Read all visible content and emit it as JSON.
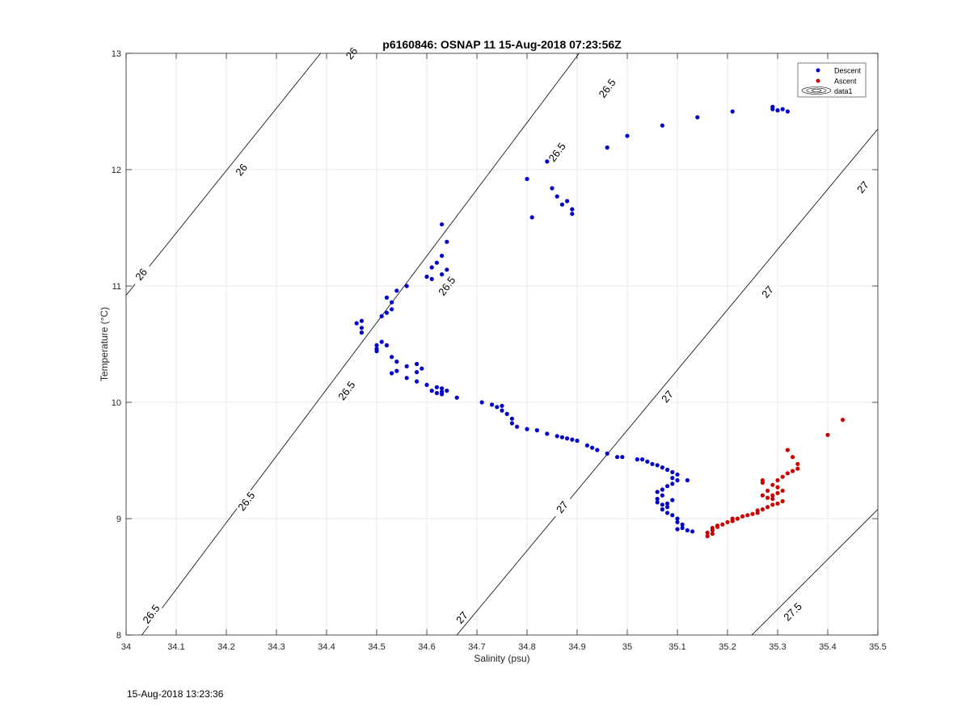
{
  "footer_timestamp": "15-Aug-2018 13:23:36",
  "colors": {
    "descent": "#0000cc",
    "ascent": "#cc0000",
    "grid": "#e3e3e3",
    "axis": "#262626",
    "isopycnal": "#000000"
  },
  "chart_data": {
    "type": "scatter",
    "title": "p6160846: OSNAP 11 15-Aug-2018 07:23:56Z",
    "xlabel": "Salinity (psu)",
    "ylabel": "Temperature (°C)",
    "xlim": [
      34,
      35.5
    ],
    "ylim": [
      8,
      13
    ],
    "xticks": [
      34,
      34.1,
      34.2,
      34.3,
      34.4,
      34.5,
      34.6,
      34.7,
      34.8,
      34.9,
      35,
      35.1,
      35.2,
      35.3,
      35.4,
      35.5
    ],
    "xtick_labels": [
      "34",
      "34.1",
      "34.2",
      "34.3",
      "34.4",
      "34.5",
      "34.6",
      "34.7",
      "34.8",
      "34.9",
      "35",
      "35.1",
      "35.2",
      "35.3",
      "35.4",
      "35.5"
    ],
    "yticks": [
      8,
      9,
      10,
      11,
      12,
      13
    ],
    "ytick_labels": [
      "8",
      "9",
      "10",
      "11",
      "12",
      "13"
    ],
    "grid": true,
    "legend": {
      "placement": "top-right",
      "entries": [
        "Descent",
        "Ascent",
        "data1"
      ]
    },
    "isopycnals": [
      {
        "label": "26",
        "points": [
          [
            34.0,
            10.92
          ],
          [
            34.5,
            13.6
          ]
        ],
        "label_positions": [
          [
            34.03,
            11.1
          ],
          [
            34.23,
            12.0
          ],
          [
            34.45,
            13.0
          ]
        ]
      },
      {
        "label": "26.5",
        "points": [
          [
            34.0,
            7.82
          ],
          [
            35.0,
            13.55
          ]
        ],
        "label_positions": [
          [
            34.05,
            8.18
          ],
          [
            34.24,
            9.15
          ],
          [
            34.44,
            10.1
          ],
          [
            34.64,
            11.0
          ],
          [
            34.86,
            12.15
          ],
          [
            34.96,
            12.7
          ]
        ]
      },
      {
        "label": "27",
        "points": [
          [
            34.66,
            8.0
          ],
          [
            35.5,
            12.35
          ]
        ],
        "label_positions": [
          [
            34.67,
            8.15
          ],
          [
            34.87,
            9.1
          ],
          [
            35.08,
            10.05
          ],
          [
            35.28,
            10.95
          ],
          [
            35.47,
            11.85
          ]
        ]
      },
      {
        "label": "27.5",
        "points": [
          [
            35.23,
            7.92
          ],
          [
            35.5,
            9.08
          ]
        ],
        "label_positions": [
          [
            35.33,
            8.2
          ]
        ]
      }
    ],
    "series": [
      {
        "name": "Descent",
        "color": "#0000cc",
        "points": [
          [
            35.29,
            12.52
          ],
          [
            35.29,
            12.54
          ],
          [
            35.3,
            12.51
          ],
          [
            35.31,
            12.52
          ],
          [
            35.32,
            12.5
          ],
          [
            35.21,
            12.5
          ],
          [
            35.14,
            12.45
          ],
          [
            35.07,
            12.38
          ],
          [
            35.0,
            12.29
          ],
          [
            34.96,
            12.19
          ],
          [
            34.84,
            12.07
          ],
          [
            34.8,
            11.92
          ],
          [
            34.85,
            11.84
          ],
          [
            34.86,
            11.77
          ],
          [
            34.88,
            11.73
          ],
          [
            34.87,
            11.7
          ],
          [
            34.89,
            11.66
          ],
          [
            34.89,
            11.62
          ],
          [
            34.81,
            11.59
          ],
          [
            34.63,
            11.53
          ],
          [
            34.64,
            11.38
          ],
          [
            34.63,
            11.26
          ],
          [
            34.62,
            11.2
          ],
          [
            34.61,
            11.16
          ],
          [
            34.64,
            11.14
          ],
          [
            34.63,
            11.1
          ],
          [
            34.61,
            11.06
          ],
          [
            34.6,
            11.08
          ],
          [
            34.56,
            11.0
          ],
          [
            34.54,
            10.96
          ],
          [
            34.52,
            10.9
          ],
          [
            34.53,
            10.86
          ],
          [
            34.53,
            10.8
          ],
          [
            34.52,
            10.77
          ],
          [
            34.51,
            10.74
          ],
          [
            34.46,
            10.68
          ],
          [
            34.47,
            10.7
          ],
          [
            34.47,
            10.64
          ],
          [
            34.47,
            10.6
          ],
          [
            34.51,
            10.52
          ],
          [
            34.5,
            10.49
          ],
          [
            34.52,
            10.49
          ],
          [
            34.5,
            10.46
          ],
          [
            34.5,
            10.44
          ],
          [
            34.53,
            10.39
          ],
          [
            34.54,
            10.35
          ],
          [
            34.56,
            10.31
          ],
          [
            34.54,
            10.27
          ],
          [
            34.53,
            10.25
          ],
          [
            34.58,
            10.33
          ],
          [
            34.59,
            10.29
          ],
          [
            34.58,
            10.26
          ],
          [
            34.56,
            10.21
          ],
          [
            34.58,
            10.18
          ],
          [
            34.6,
            10.15
          ],
          [
            34.62,
            10.13
          ],
          [
            34.63,
            10.12
          ],
          [
            34.61,
            10.1
          ],
          [
            34.63,
            10.09
          ],
          [
            34.64,
            10.1
          ],
          [
            34.63,
            10.07
          ],
          [
            34.62,
            10.08
          ],
          [
            34.66,
            10.04
          ],
          [
            34.71,
            10.0
          ],
          [
            34.73,
            9.98
          ],
          [
            34.74,
            9.96
          ],
          [
            34.75,
            9.97
          ],
          [
            34.75,
            9.93
          ],
          [
            34.76,
            9.9
          ],
          [
            34.77,
            9.86
          ],
          [
            34.77,
            9.82
          ],
          [
            34.78,
            9.79
          ],
          [
            34.8,
            9.77
          ],
          [
            34.82,
            9.76
          ],
          [
            34.84,
            9.73
          ],
          [
            34.86,
            9.71
          ],
          [
            34.87,
            9.7
          ],
          [
            34.88,
            9.69
          ],
          [
            34.89,
            9.68
          ],
          [
            34.9,
            9.67
          ],
          [
            34.92,
            9.63
          ],
          [
            34.93,
            9.61
          ],
          [
            34.94,
            9.59
          ],
          [
            34.96,
            9.56
          ],
          [
            34.98,
            9.53
          ],
          [
            34.99,
            9.53
          ],
          [
            35.02,
            9.51
          ],
          [
            35.03,
            9.51
          ],
          [
            35.04,
            9.49
          ],
          [
            35.05,
            9.47
          ],
          [
            35.06,
            9.46
          ],
          [
            35.07,
            9.44
          ],
          [
            35.08,
            9.42
          ],
          [
            35.09,
            9.4
          ],
          [
            35.1,
            9.38
          ],
          [
            35.09,
            9.35
          ],
          [
            35.1,
            9.33
          ],
          [
            35.12,
            9.33
          ],
          [
            35.09,
            9.3
          ],
          [
            35.08,
            9.28
          ],
          [
            35.07,
            9.25
          ],
          [
            35.06,
            9.23
          ],
          [
            35.07,
            9.2
          ],
          [
            35.06,
            9.17
          ],
          [
            35.06,
            9.14
          ],
          [
            35.07,
            9.12
          ],
          [
            35.08,
            9.13
          ],
          [
            35.09,
            9.16
          ],
          [
            35.08,
            9.1
          ],
          [
            35.07,
            9.08
          ],
          [
            35.08,
            9.05
          ],
          [
            35.09,
            9.03
          ],
          [
            35.1,
            9.0
          ],
          [
            35.1,
            8.97
          ],
          [
            35.11,
            8.95
          ],
          [
            35.11,
            8.92
          ],
          [
            35.1,
            8.91
          ],
          [
            35.12,
            8.9
          ],
          [
            35.13,
            8.89
          ]
        ]
      },
      {
        "name": "Ascent",
        "color": "#cc0000",
        "points": [
          [
            35.16,
            8.85
          ],
          [
            35.16,
            8.88
          ],
          [
            35.17,
            8.87
          ],
          [
            35.17,
            8.9
          ],
          [
            35.17,
            8.92
          ],
          [
            35.18,
            8.93
          ],
          [
            35.18,
            8.94
          ],
          [
            35.19,
            8.95
          ],
          [
            35.2,
            8.97
          ],
          [
            35.21,
            8.98
          ],
          [
            35.21,
            9.0
          ],
          [
            35.22,
            9.0
          ],
          [
            35.23,
            9.02
          ],
          [
            35.24,
            9.03
          ],
          [
            35.25,
            9.04
          ],
          [
            35.26,
            9.05
          ],
          [
            35.26,
            9.07
          ],
          [
            35.27,
            9.08
          ],
          [
            35.28,
            9.1
          ],
          [
            35.29,
            9.12
          ],
          [
            35.3,
            9.13
          ],
          [
            35.31,
            9.15
          ],
          [
            35.29,
            9.17
          ],
          [
            35.28,
            9.18
          ],
          [
            35.27,
            9.2
          ],
          [
            35.29,
            9.2
          ],
          [
            35.3,
            9.22
          ],
          [
            35.31,
            9.24
          ],
          [
            35.28,
            9.24
          ],
          [
            35.3,
            9.27
          ],
          [
            35.29,
            9.29
          ],
          [
            35.27,
            9.31
          ],
          [
            35.27,
            9.33
          ],
          [
            35.3,
            9.33
          ],
          [
            35.31,
            9.36
          ],
          [
            35.32,
            9.39
          ],
          [
            35.33,
            9.41
          ],
          [
            35.34,
            9.43
          ],
          [
            35.34,
            9.47
          ],
          [
            35.33,
            9.53
          ],
          [
            35.32,
            9.59
          ],
          [
            35.4,
            9.72
          ],
          [
            35.43,
            9.85
          ]
        ]
      }
    ]
  }
}
